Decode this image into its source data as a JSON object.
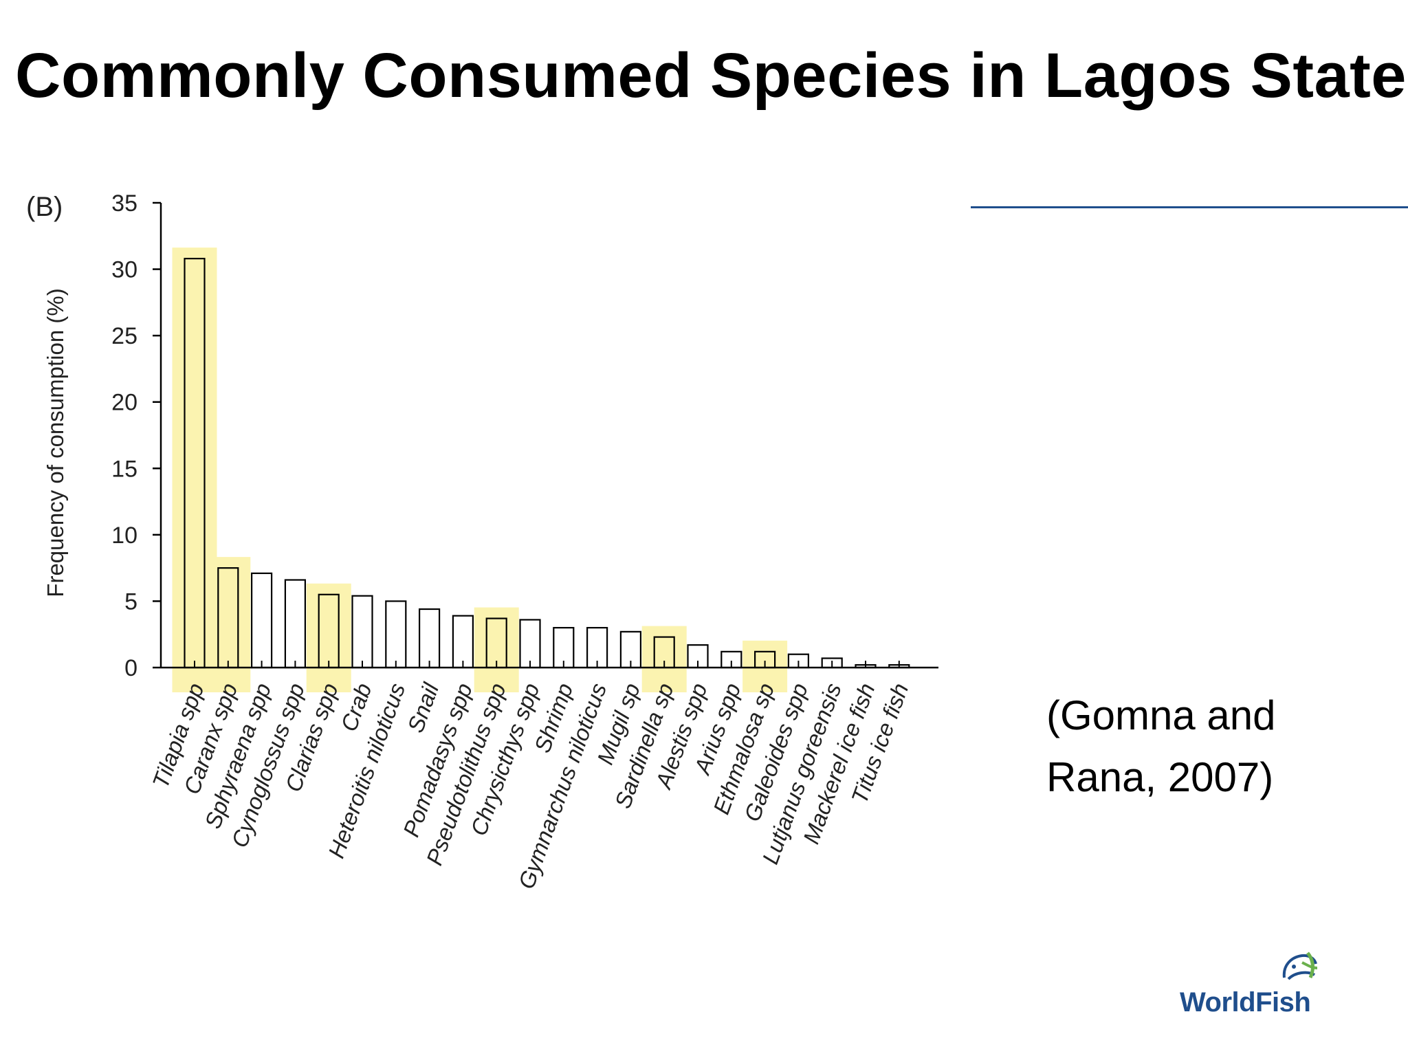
{
  "slide": {
    "title": "Commonly Consumed Species in Lagos State",
    "citation_line1": "(Gomna and",
    "citation_line2": "Rana, 2007)",
    "logo_text": "WorldFish"
  },
  "colors": {
    "highlight": "#fbf3b0",
    "bar_stroke": "#000000",
    "bar_fill": "#ffffff",
    "rule_line": "#1f4e8c",
    "logo": "#1f4e8c",
    "logo_accent": "#6ab04c"
  },
  "chart_data": {
    "type": "bar",
    "panel_label": "(B)",
    "ylabel": "Frequency of consumption (%)",
    "xlabel": "",
    "ylim": [
      0,
      35
    ],
    "yticks": [
      "0",
      "5",
      "10",
      "15",
      "20",
      "25",
      "30",
      "35"
    ],
    "grid": false,
    "categories": [
      "Tilapia spp",
      "Caranx spp",
      "Sphyraena spp",
      "Cynoglossus spp",
      "Clarias spp",
      "Crab",
      "Heteroitis niloticus",
      "Snail",
      "Pomadasys spp",
      "Pseudotolithus spp",
      "Chrysicthys spp",
      "Shrimp",
      "Gymnarchus niloticus",
      "Mugil sp",
      "Sardinella sp",
      "Alestis spp",
      "Arius spp",
      "Ethmalosa sp",
      "Galeoides spp",
      "Lutjanus goreensis",
      "Mackerel ice fish",
      "Titus ice fish"
    ],
    "values": [
      30.8,
      7.5,
      7.1,
      6.6,
      5.5,
      5.4,
      5.0,
      4.4,
      3.9,
      3.7,
      3.6,
      3.0,
      3.0,
      2.7,
      2.3,
      1.7,
      1.2,
      1.2,
      1.0,
      0.7,
      0.2,
      0.2
    ],
    "highlighted": [
      "Tilapia spp",
      "Caranx spp",
      "Clarias spp",
      "Pseudotolithus spp",
      "Sardinella sp",
      "Ethmalosa sp"
    ]
  }
}
